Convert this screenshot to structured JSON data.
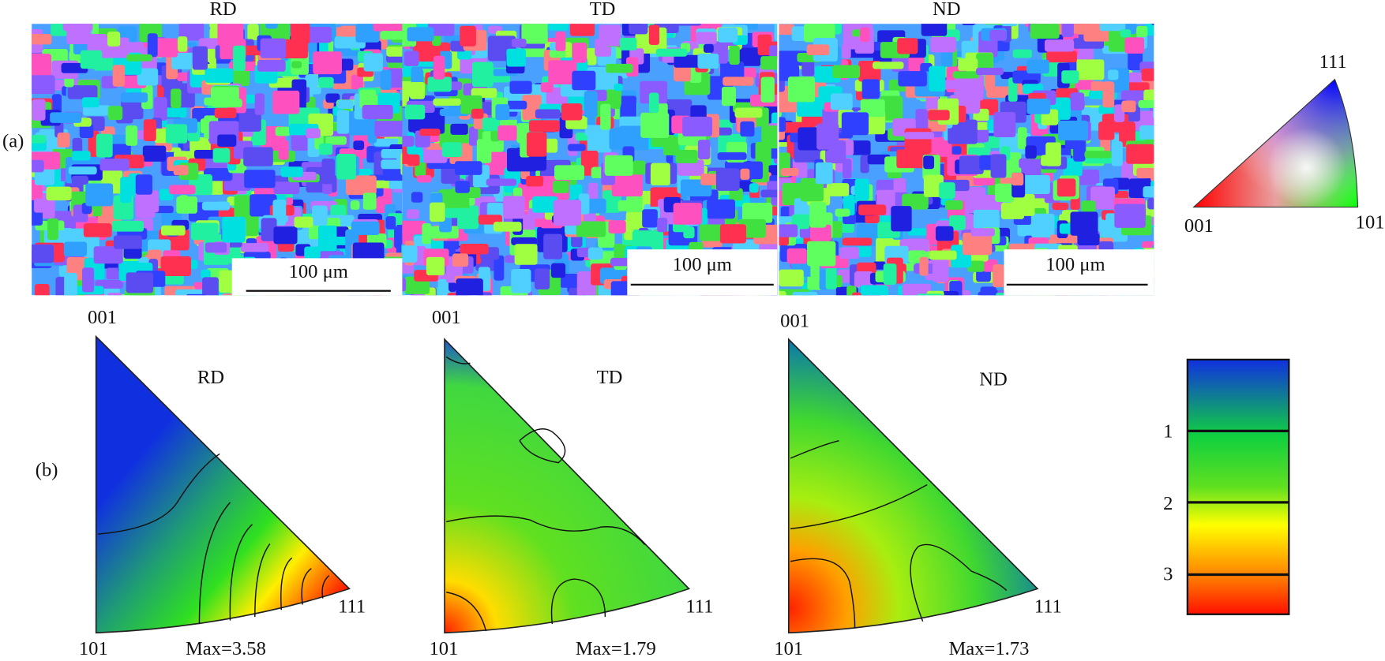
{
  "panel_labels": [
    "(a)",
    "(b)"
  ],
  "maps": [
    {
      "title": "RD",
      "scale_bar": "100 μm"
    },
    {
      "title": "TD",
      "scale_bar": "100 μm"
    },
    {
      "title": "ND",
      "scale_bar": "100 μm"
    }
  ],
  "key": {
    "labels": [
      "001",
      "101",
      "111"
    ]
  },
  "ipf": [
    {
      "title": "RD",
      "corners": [
        "001",
        "101",
        "111"
      ],
      "max": "Max=3.58"
    },
    {
      "title": "TD",
      "corners": [
        "001",
        "101",
        "111"
      ],
      "max": "Max=1.79"
    },
    {
      "title": "ND",
      "corners": [
        "001",
        "101",
        "111"
      ],
      "max": "Max=1.73"
    }
  ],
  "colorbar": {
    "ticks": [
      "1",
      "2",
      "3"
    ]
  }
}
